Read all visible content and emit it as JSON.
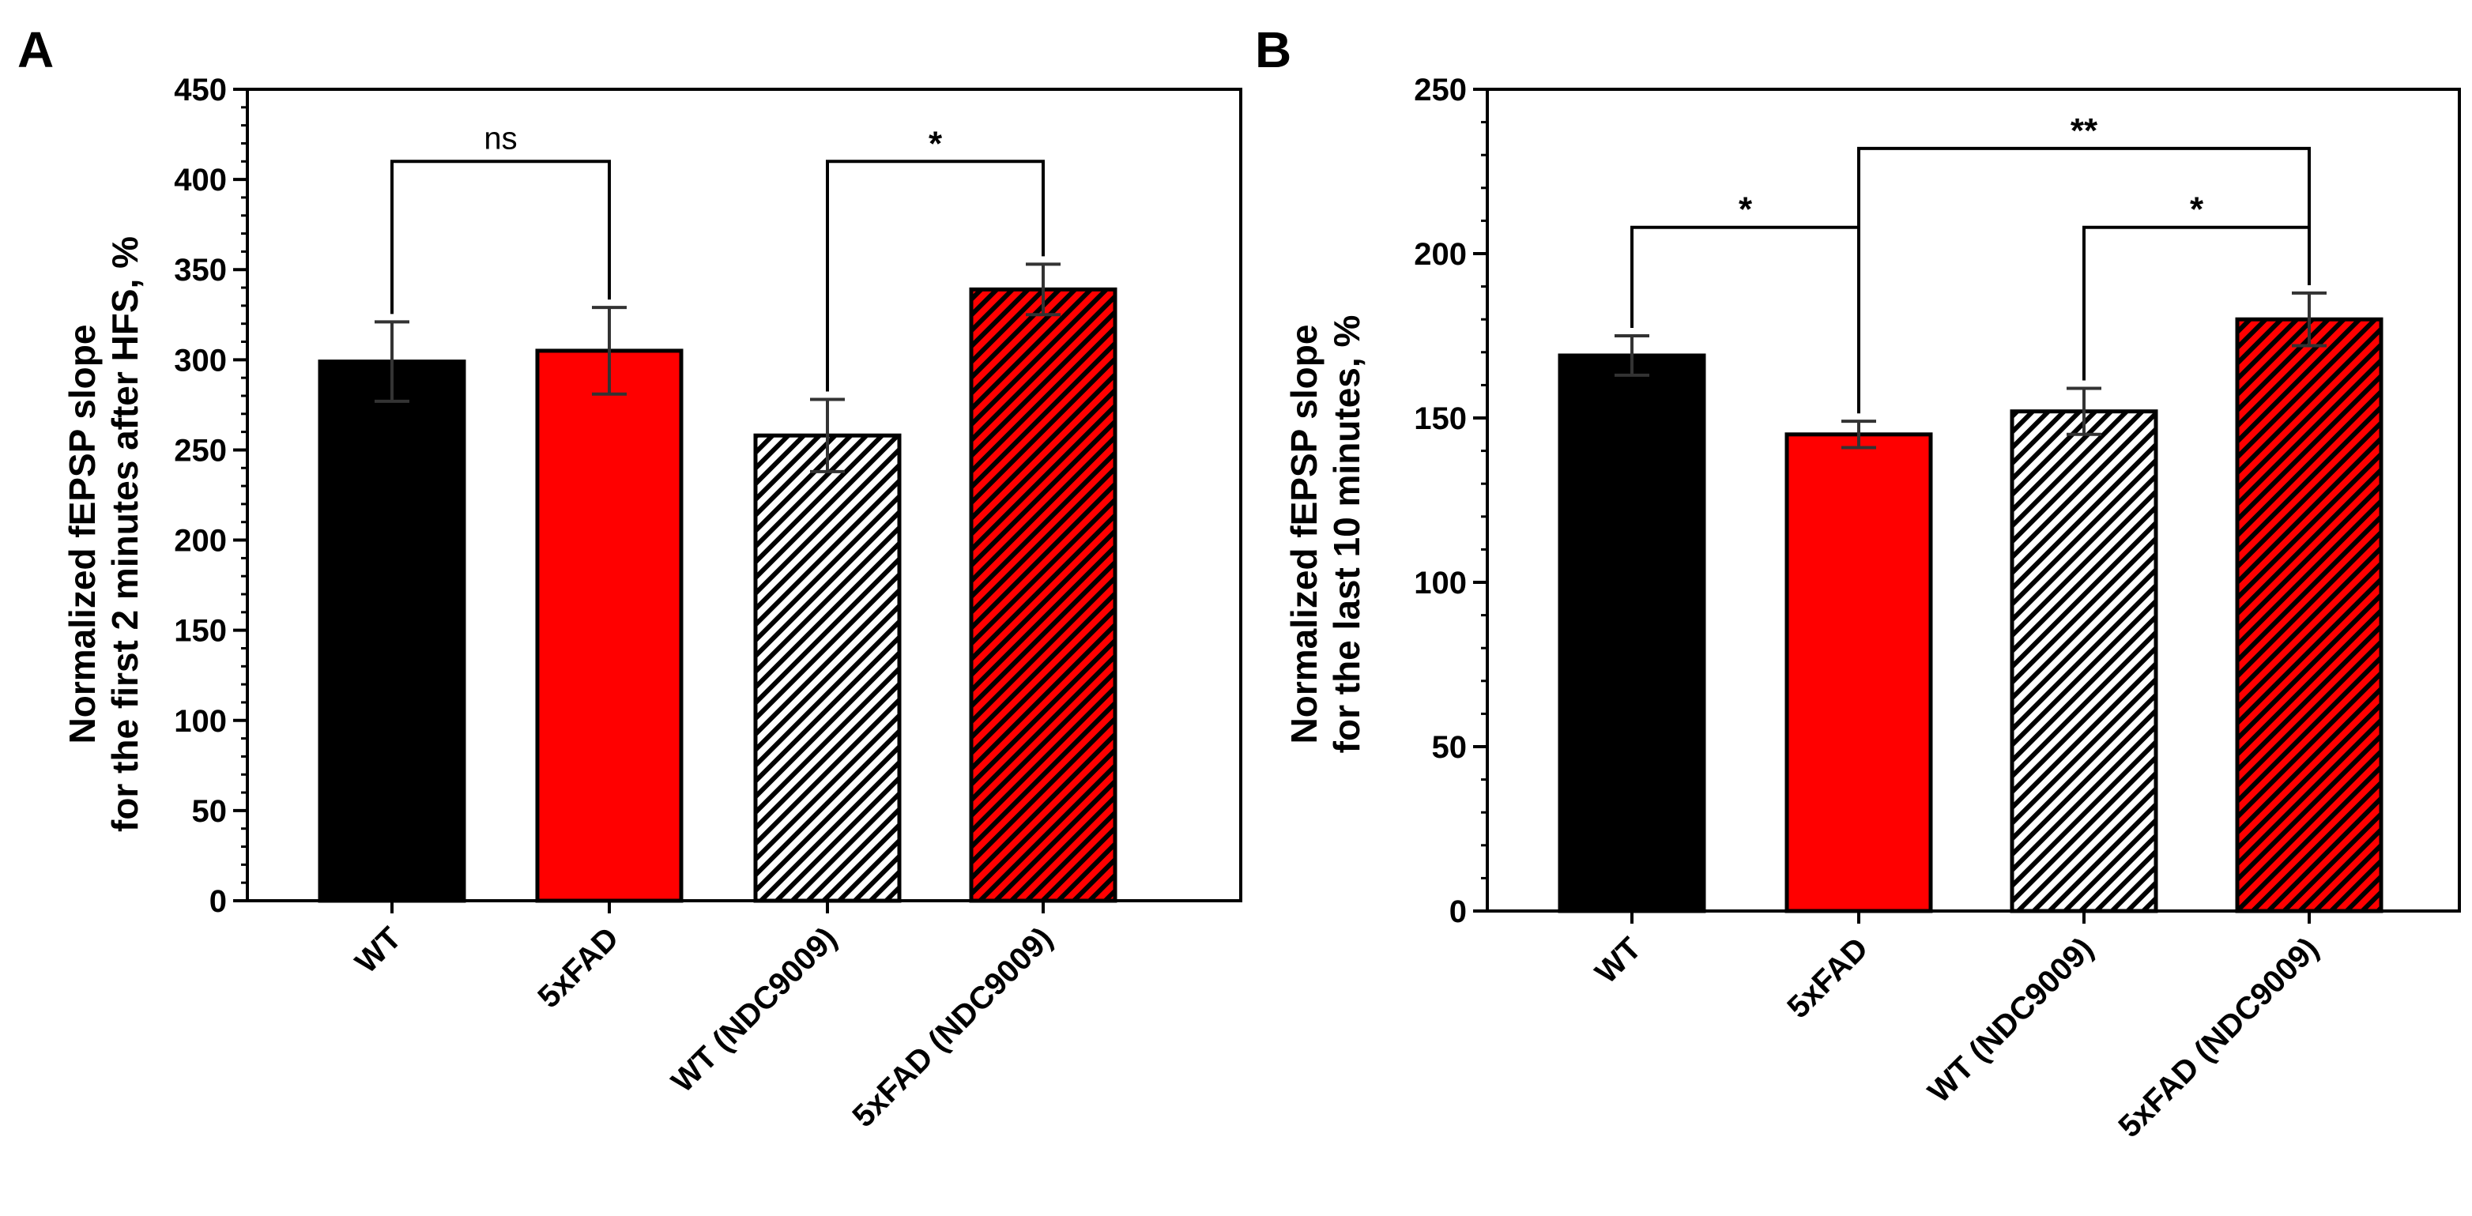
{
  "colors": {
    "black": "#000000",
    "red": "#ff0000",
    "white": "#ffffff",
    "error": "#333333"
  },
  "chart_data": [
    {
      "type": "bar",
      "panel_label": "A",
      "categories": [
        "WT",
        "5xFAD",
        "WT (NDC9009)",
        "5xFAD (NDC9009)"
      ],
      "values": [
        299,
        305,
        258,
        339
      ],
      "errors": [
        22,
        24,
        20,
        14
      ],
      "fills": [
        "solid-black",
        "solid-red",
        "hatch-white",
        "hatch-red"
      ],
      "ylabel_line1": "Normalized fEPSP slope",
      "ylabel_line2": "for the first 2 minutes after HFS, %",
      "ylim": [
        0,
        450
      ],
      "yticks": [
        0,
        50,
        100,
        150,
        200,
        250,
        300,
        350,
        400,
        450
      ],
      "yticklabels": [
        "0",
        "50",
        "100",
        "150",
        "200",
        "250",
        "300",
        "350",
        "400",
        "450"
      ],
      "comparisons": [
        {
          "from": 0,
          "to": 1,
          "label": "ns",
          "level": 410
        },
        {
          "from": 2,
          "to": 3,
          "label": "*",
          "level": 410
        }
      ]
    },
    {
      "type": "bar",
      "panel_label": "B",
      "categories": [
        "WT",
        "5xFAD",
        "WT (NDC9009)",
        "5xFAD (NDC9009)"
      ],
      "values": [
        169,
        145,
        152,
        180
      ],
      "errors": [
        6,
        4,
        7,
        8
      ],
      "fills": [
        "solid-black",
        "solid-red",
        "hatch-white",
        "hatch-red"
      ],
      "ylabel_line1": "Normalized fEPSP slope",
      "ylabel_line2": "for the last 10 minutes, %",
      "ylim": [
        0,
        250
      ],
      "yticks": [
        0,
        50,
        100,
        150,
        200,
        250
      ],
      "yticklabels": [
        "0",
        "50",
        "100",
        "150",
        "200",
        "250"
      ],
      "comparisons": [
        {
          "from": 0,
          "to": 1,
          "label": "*",
          "level": 208
        },
        {
          "from": 1,
          "to": 3,
          "label": "**",
          "level": 232
        },
        {
          "from": 2,
          "to": 3,
          "label": "*",
          "level": 208
        }
      ]
    }
  ]
}
